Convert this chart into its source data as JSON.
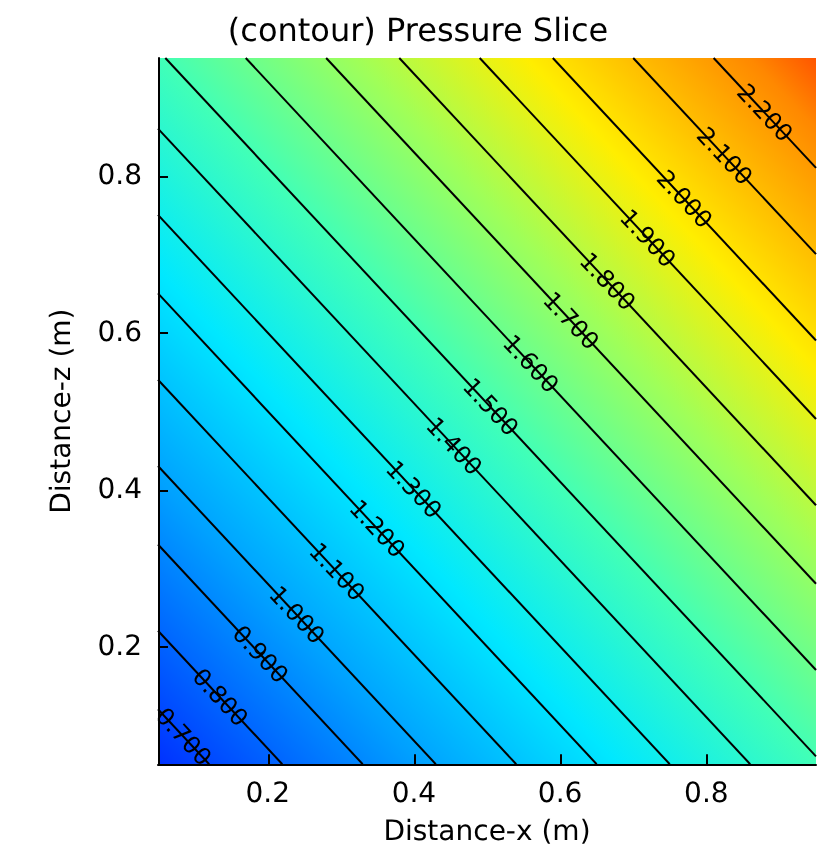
{
  "chart_data": {
    "type": "line",
    "title": "(contour) Pressure Slice",
    "xlabel": "Distance-x (m)",
    "ylabel": "Distance-z (m)",
    "xlim": [
      0.05,
      0.95
    ],
    "ylim": [
      0.05,
      0.95
    ],
    "xticks": [
      0.2,
      0.4,
      0.6,
      0.8
    ],
    "yticks": [
      0.2,
      0.4,
      0.6,
      0.8
    ],
    "grid": false,
    "legend": false,
    "marker": "none",
    "line_style": "solid",
    "series": [
      {
        "name": "0.700",
        "color": "#000000",
        "x": [
          0.05,
          0.12
        ],
        "values": [
          0.12,
          0.05
        ]
      },
      {
        "name": "0.800",
        "color": "#000000",
        "x": [
          0.05,
          0.22
        ],
        "values": [
          0.22,
          0.05
        ]
      },
      {
        "name": "0.900",
        "color": "#000000",
        "x": [
          0.05,
          0.33
        ],
        "values": [
          0.33,
          0.05
        ]
      },
      {
        "name": "1.000",
        "color": "#000000",
        "x": [
          0.05,
          0.43
        ],
        "values": [
          0.43,
          0.05
        ]
      },
      {
        "name": "1.100",
        "color": "#000000",
        "x": [
          0.05,
          0.54
        ],
        "values": [
          0.54,
          0.05
        ]
      },
      {
        "name": "1.200",
        "color": "#000000",
        "x": [
          0.05,
          0.65
        ],
        "values": [
          0.65,
          0.05
        ]
      },
      {
        "name": "1.300",
        "color": "#000000",
        "x": [
          0.05,
          0.75
        ],
        "values": [
          0.75,
          0.05
        ]
      },
      {
        "name": "1.400",
        "color": "#000000",
        "x": [
          0.05,
          0.86
        ],
        "values": [
          0.86,
          0.05
        ]
      },
      {
        "name": "1.500",
        "color": "#000000",
        "x": [
          0.06,
          0.95
        ],
        "values": [
          0.95,
          0.06
        ]
      },
      {
        "name": "1.600",
        "color": "#000000",
        "x": [
          0.17,
          0.95
        ],
        "values": [
          0.95,
          0.17
        ]
      },
      {
        "name": "1.700",
        "color": "#000000",
        "x": [
          0.28,
          0.95
        ],
        "values": [
          0.95,
          0.28
        ]
      },
      {
        "name": "1.800",
        "color": "#000000",
        "x": [
          0.38,
          0.95
        ],
        "values": [
          0.95,
          0.38
        ]
      },
      {
        "name": "1.900",
        "color": "#000000",
        "x": [
          0.49,
          0.95
        ],
        "values": [
          0.95,
          0.49
        ]
      },
      {
        "name": "2.000",
        "color": "#000000",
        "x": [
          0.59,
          0.95
        ],
        "values": [
          0.95,
          0.59
        ]
      },
      {
        "name": "2.100",
        "color": "#000000",
        "x": [
          0.7,
          0.95
        ],
        "values": [
          0.95,
          0.7
        ]
      },
      {
        "name": "2.200",
        "color": "#000000",
        "x": [
          0.81,
          0.95
        ],
        "values": [
          0.95,
          0.81
        ]
      }
    ]
  }
}
